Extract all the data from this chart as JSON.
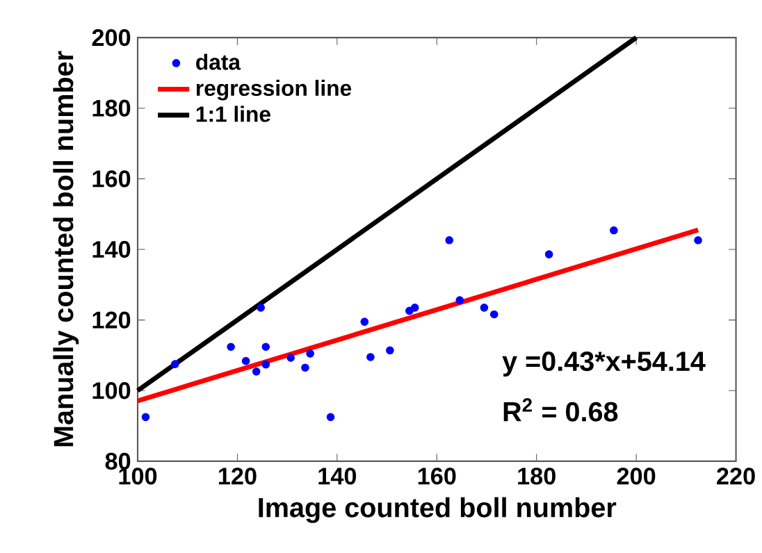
{
  "chart_data": {
    "type": "scatter",
    "xlabel": "Image counted boll number",
    "ylabel": "Manually counted boll number",
    "xlim": [
      100,
      220
    ],
    "ylim": [
      80,
      200
    ],
    "xticks": [
      100,
      120,
      140,
      160,
      180,
      200,
      220
    ],
    "yticks": [
      80,
      100,
      120,
      140,
      160,
      180,
      200
    ],
    "legend": "top left",
    "grid": false,
    "series": [
      {
        "name": "data",
        "marker": "circle",
        "color": "#0000ff",
        "x": [
          101.6,
          107.5,
          118.7,
          121.7,
          123.8,
          124.7,
          125.7,
          125.7,
          130.7,
          133.6,
          134.6,
          138.7,
          145.5,
          146.7,
          150.6,
          154.5,
          155.6,
          162.5,
          164.6,
          169.5,
          171.5,
          182.5,
          195.5,
          212.4
        ],
        "values": [
          92.5,
          107.5,
          112.4,
          108.4,
          105.4,
          123.5,
          112.4,
          107.4,
          109.3,
          106.5,
          110.5,
          92.5,
          119.5,
          109.5,
          111.4,
          122.6,
          123.5,
          142.6,
          125.6,
          123.5,
          121.6,
          138.6,
          145.4,
          142.6
        ]
      },
      {
        "name": "regression line",
        "type": "line",
        "marker": "none",
        "color": "#ff0000",
        "x": [
          100,
          212.4
        ],
        "values": [
          97.1,
          145.5
        ]
      },
      {
        "name": "1:1 line",
        "type": "line",
        "marker": "none",
        "color": "#000000",
        "x": [
          100,
          200
        ],
        "values": [
          100,
          200
        ]
      }
    ],
    "annotations": [
      "y =0.43*x+54.14",
      "R$^{2}$ = 0.68"
    ]
  }
}
